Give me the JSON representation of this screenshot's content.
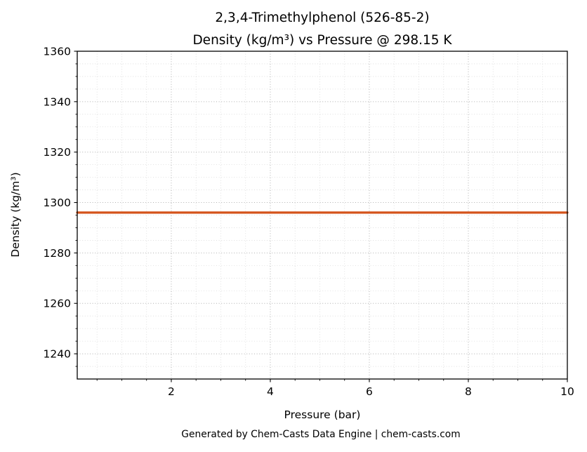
{
  "title": {
    "line1": "2,3,4-Trimethylphenol (526-85-2)",
    "line2": "Density (kg/m³) vs Pressure @ 298.15 K"
  },
  "footer": "Generated by Chem-Casts Data Engine | chem-casts.com",
  "chart_data": {
    "type": "line",
    "title": "2,3,4-Trimethylphenol (526-85-2) — Density (kg/m³) vs Pressure @ 298.15 K",
    "xlabel": "Pressure (bar)",
    "ylabel": "Density (kg/m³)",
    "xlim": [
      0.1,
      10
    ],
    "ylim": [
      1230,
      1360
    ],
    "xticks": [
      2,
      4,
      6,
      8,
      10
    ],
    "yticks": [
      1240,
      1260,
      1280,
      1300,
      1320,
      1340,
      1360
    ],
    "x_minor_step": 0.5,
    "y_minor_step": 5,
    "grid": true,
    "legend": "none",
    "series": [
      {
        "name": "Density @ 298.15 K",
        "color": "#d4531b",
        "x": [
          0.1,
          1,
          2,
          3,
          4,
          5,
          6,
          7,
          8,
          9,
          10
        ],
        "y": [
          1296,
          1296,
          1296,
          1296,
          1296,
          1296,
          1296,
          1296,
          1296,
          1296,
          1296
        ]
      }
    ],
    "style": {
      "grid_major_color": "#b0b0b0",
      "grid_minor_color": "#dadada",
      "spine_color": "#000000",
      "line_width": 3.2
    }
  },
  "colors": {
    "footer_text": "#595959",
    "background": "#ffffff"
  }
}
